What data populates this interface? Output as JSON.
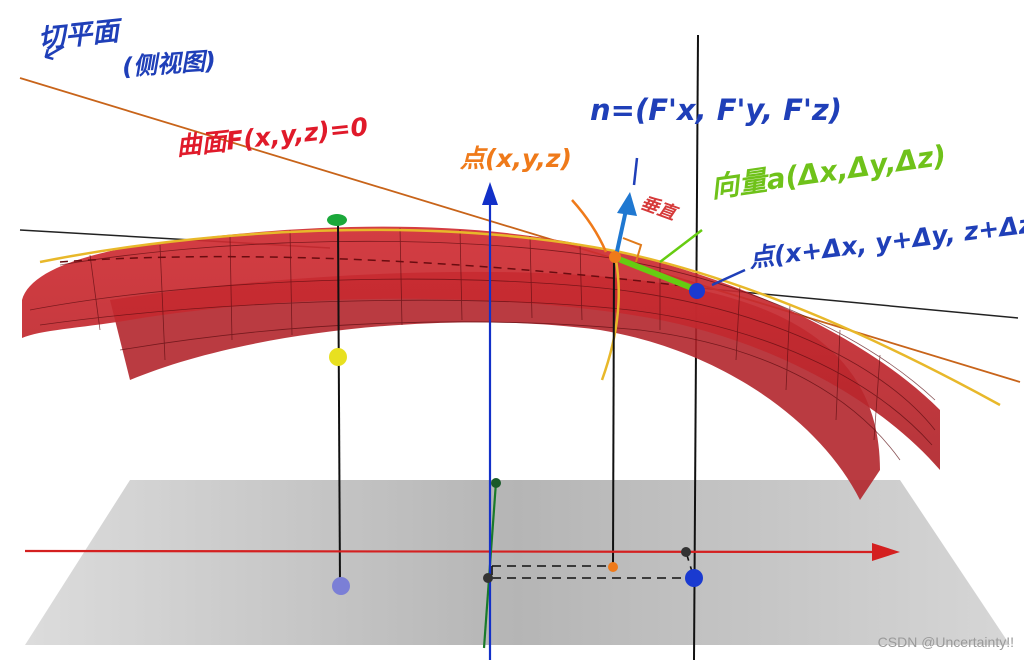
{
  "labels": {
    "tangent_plane": "切平面",
    "tangent_plane_note": "(侧视图)",
    "surface": "曲面F(x,y,z)=0",
    "normal": "n=(F'x, F'y, F'z)",
    "point_a": "点(x,y,z)",
    "perpendicular": "垂直",
    "vector_a": "向量a(Δx,Δy,Δz)",
    "point_b": "点(x+Δx, y+Δy, z+Δz)"
  },
  "watermark": "CSDN @Uncertainty!!",
  "icons": {
    "tangent_pointer": "down-arrow-icon"
  },
  "colors": {
    "surface": "#c8262c",
    "surface_dark": "#9e1c22",
    "tangent_line": "#c8641a",
    "z_axis": "#1230c8",
    "x_axis": "#d42020",
    "y_axis": "#1a7a2a",
    "vector": "#66cc11",
    "normal_arrow": "#1f78d1",
    "point_top": "#1aa83a",
    "point_yellow": "#e8e020",
    "point_proj": "#7b7fd6",
    "point_a": "#ef7a1a",
    "point_b": "#1a3ad0"
  }
}
